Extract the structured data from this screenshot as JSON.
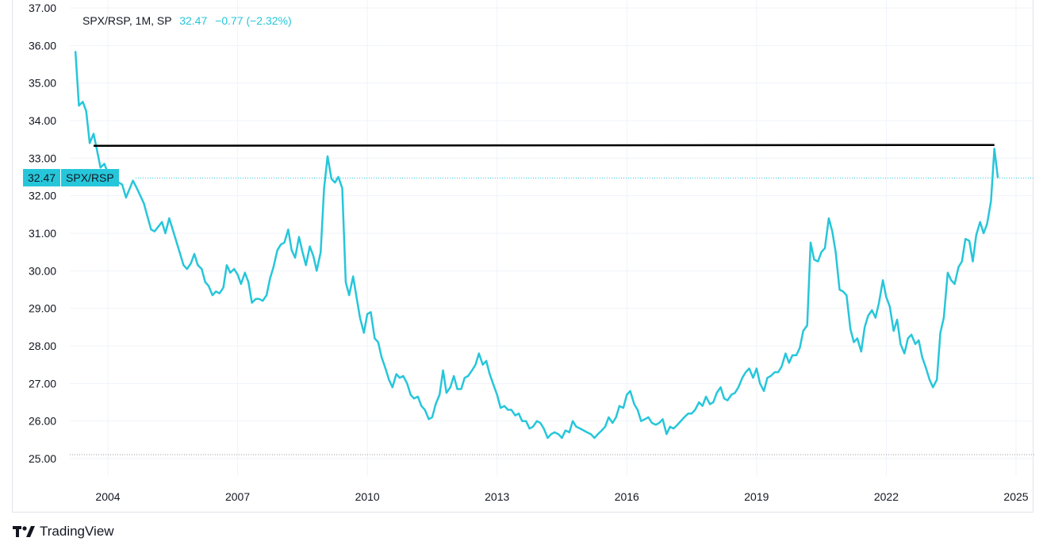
{
  "legend": {
    "symbol": "SPX/RSP, 1M, SP",
    "price": "32.47",
    "change": "−0.77 (−2.32%)"
  },
  "last_badge": {
    "price": "32.47",
    "name": "SPX/RSP"
  },
  "brand": "TradingView",
  "colors": {
    "line": "#26c6da",
    "resistance": "#000000",
    "grid": "#f0f3fa"
  },
  "chart_data": {
    "type": "line",
    "title": "SPX/RSP, 1M, SP",
    "ylim": [
      25.0,
      37.0
    ],
    "y_ticks": [
      "25.00",
      "26.00",
      "27.00",
      "28.00",
      "29.00",
      "30.00",
      "31.00",
      "32.00",
      "33.00",
      "34.00",
      "35.00",
      "36.00",
      "37.00"
    ],
    "x_ticks": [
      "2004",
      "2007",
      "2010",
      "2013",
      "2016",
      "2019",
      "2022",
      "2025"
    ],
    "last_value": 32.47,
    "series": [
      {
        "values": [
          [
            2003.25,
            35.85
          ],
          [
            2003.33,
            34.4
          ],
          [
            2003.42,
            34.5
          ],
          [
            2003.5,
            34.25
          ],
          [
            2003.58,
            33.4
          ],
          [
            2003.67,
            33.65
          ],
          [
            2003.75,
            33.2
          ],
          [
            2003.83,
            32.75
          ],
          [
            2003.92,
            32.85
          ],
          [
            2004.0,
            32.6
          ],
          [
            2004.17,
            32.4
          ],
          [
            2004.33,
            32.3
          ],
          [
            2004.42,
            31.95
          ],
          [
            2004.58,
            32.4
          ],
          [
            2004.67,
            32.2
          ],
          [
            2004.83,
            31.8
          ],
          [
            2005.0,
            31.1
          ],
          [
            2005.08,
            31.05
          ],
          [
            2005.25,
            31.3
          ],
          [
            2005.33,
            31.0
          ],
          [
            2005.42,
            31.4
          ],
          [
            2005.58,
            30.8
          ],
          [
            2005.75,
            30.15
          ],
          [
            2005.83,
            30.05
          ],
          [
            2005.92,
            30.2
          ],
          [
            2006.0,
            30.45
          ],
          [
            2006.08,
            30.15
          ],
          [
            2006.17,
            30.05
          ],
          [
            2006.25,
            29.7
          ],
          [
            2006.33,
            29.6
          ],
          [
            2006.42,
            29.35
          ],
          [
            2006.5,
            29.45
          ],
          [
            2006.58,
            29.4
          ],
          [
            2006.67,
            29.55
          ],
          [
            2006.75,
            30.15
          ],
          [
            2006.83,
            29.95
          ],
          [
            2006.92,
            30.05
          ],
          [
            2007.0,
            29.9
          ],
          [
            2007.08,
            29.65
          ],
          [
            2007.17,
            29.95
          ],
          [
            2007.25,
            29.7
          ],
          [
            2007.33,
            29.15
          ],
          [
            2007.42,
            29.25
          ],
          [
            2007.5,
            29.25
          ],
          [
            2007.58,
            29.2
          ],
          [
            2007.67,
            29.35
          ],
          [
            2007.75,
            29.8
          ],
          [
            2007.83,
            30.1
          ],
          [
            2007.92,
            30.55
          ],
          [
            2008.0,
            30.7
          ],
          [
            2008.08,
            30.75
          ],
          [
            2008.17,
            31.1
          ],
          [
            2008.25,
            30.55
          ],
          [
            2008.33,
            30.35
          ],
          [
            2008.42,
            30.9
          ],
          [
            2008.5,
            30.5
          ],
          [
            2008.58,
            30.15
          ],
          [
            2008.67,
            30.65
          ],
          [
            2008.75,
            30.4
          ],
          [
            2008.83,
            30.0
          ],
          [
            2008.92,
            30.5
          ],
          [
            2009.0,
            32.2
          ],
          [
            2009.08,
            33.05
          ],
          [
            2009.17,
            32.45
          ],
          [
            2009.25,
            32.35
          ],
          [
            2009.33,
            32.5
          ],
          [
            2009.42,
            32.2
          ],
          [
            2009.5,
            29.7
          ],
          [
            2009.58,
            29.35
          ],
          [
            2009.67,
            29.85
          ],
          [
            2009.75,
            29.3
          ],
          [
            2009.83,
            28.75
          ],
          [
            2009.92,
            28.35
          ],
          [
            2010.0,
            28.85
          ],
          [
            2010.08,
            28.9
          ],
          [
            2010.17,
            28.2
          ],
          [
            2010.25,
            28.1
          ],
          [
            2010.33,
            27.7
          ],
          [
            2010.42,
            27.4
          ],
          [
            2010.5,
            27.1
          ],
          [
            2010.58,
            26.9
          ],
          [
            2010.67,
            27.25
          ],
          [
            2010.75,
            27.15
          ],
          [
            2010.83,
            27.2
          ],
          [
            2010.92,
            27.0
          ],
          [
            2011.0,
            26.7
          ],
          [
            2011.08,
            26.6
          ],
          [
            2011.17,
            26.65
          ],
          [
            2011.25,
            26.4
          ],
          [
            2011.33,
            26.3
          ],
          [
            2011.42,
            26.05
          ],
          [
            2011.5,
            26.1
          ],
          [
            2011.58,
            26.45
          ],
          [
            2011.67,
            26.7
          ],
          [
            2011.75,
            27.35
          ],
          [
            2011.83,
            26.75
          ],
          [
            2011.92,
            26.9
          ],
          [
            2012.0,
            27.2
          ],
          [
            2012.08,
            26.85
          ],
          [
            2012.17,
            26.85
          ],
          [
            2012.25,
            27.15
          ],
          [
            2012.33,
            27.2
          ],
          [
            2012.42,
            27.35
          ],
          [
            2012.5,
            27.5
          ],
          [
            2012.58,
            27.8
          ],
          [
            2012.67,
            27.5
          ],
          [
            2012.75,
            27.6
          ],
          [
            2012.83,
            27.25
          ],
          [
            2012.92,
            26.95
          ],
          [
            2013.0,
            26.7
          ],
          [
            2013.08,
            26.35
          ],
          [
            2013.17,
            26.4
          ],
          [
            2013.25,
            26.3
          ],
          [
            2013.33,
            26.3
          ],
          [
            2013.42,
            26.15
          ],
          [
            2013.5,
            26.2
          ],
          [
            2013.58,
            26.0
          ],
          [
            2013.67,
            26.0
          ],
          [
            2013.75,
            25.8
          ],
          [
            2013.83,
            25.85
          ],
          [
            2013.92,
            26.0
          ],
          [
            2014.0,
            25.95
          ],
          [
            2014.08,
            25.8
          ],
          [
            2014.17,
            25.55
          ],
          [
            2014.25,
            25.65
          ],
          [
            2014.33,
            25.7
          ],
          [
            2014.42,
            25.65
          ],
          [
            2014.5,
            25.55
          ],
          [
            2014.58,
            25.75
          ],
          [
            2014.67,
            25.7
          ],
          [
            2014.75,
            26.0
          ],
          [
            2014.83,
            25.85
          ],
          [
            2014.92,
            25.8
          ],
          [
            2015.0,
            25.75
          ],
          [
            2015.08,
            25.7
          ],
          [
            2015.17,
            25.65
          ],
          [
            2015.25,
            25.55
          ],
          [
            2015.33,
            25.65
          ],
          [
            2015.42,
            25.75
          ],
          [
            2015.5,
            25.85
          ],
          [
            2015.58,
            26.1
          ],
          [
            2015.67,
            25.95
          ],
          [
            2015.75,
            26.1
          ],
          [
            2015.83,
            26.4
          ],
          [
            2015.92,
            26.35
          ],
          [
            2016.0,
            26.7
          ],
          [
            2016.08,
            26.8
          ],
          [
            2016.17,
            26.45
          ],
          [
            2016.25,
            26.3
          ],
          [
            2016.33,
            26.0
          ],
          [
            2016.42,
            26.05
          ],
          [
            2016.5,
            26.1
          ],
          [
            2016.58,
            25.95
          ],
          [
            2016.67,
            25.9
          ],
          [
            2016.75,
            25.95
          ],
          [
            2016.83,
            26.05
          ],
          [
            2016.92,
            25.65
          ],
          [
            2017.0,
            25.85
          ],
          [
            2017.08,
            25.8
          ],
          [
            2017.17,
            25.9
          ],
          [
            2017.25,
            26.0
          ],
          [
            2017.33,
            26.1
          ],
          [
            2017.42,
            26.2
          ],
          [
            2017.5,
            26.2
          ],
          [
            2017.58,
            26.3
          ],
          [
            2017.67,
            26.5
          ],
          [
            2017.75,
            26.4
          ],
          [
            2017.83,
            26.65
          ],
          [
            2017.92,
            26.45
          ],
          [
            2018.0,
            26.5
          ],
          [
            2018.08,
            26.75
          ],
          [
            2018.17,
            26.9
          ],
          [
            2018.25,
            26.6
          ],
          [
            2018.33,
            26.55
          ],
          [
            2018.42,
            26.7
          ],
          [
            2018.5,
            26.75
          ],
          [
            2018.58,
            26.9
          ],
          [
            2018.67,
            27.15
          ],
          [
            2018.75,
            27.3
          ],
          [
            2018.83,
            27.4
          ],
          [
            2018.92,
            27.15
          ],
          [
            2019.0,
            27.4
          ],
          [
            2019.08,
            27.0
          ],
          [
            2019.17,
            26.8
          ],
          [
            2019.25,
            27.15
          ],
          [
            2019.33,
            27.2
          ],
          [
            2019.42,
            27.3
          ],
          [
            2019.5,
            27.3
          ],
          [
            2019.58,
            27.45
          ],
          [
            2019.67,
            27.8
          ],
          [
            2019.75,
            27.55
          ],
          [
            2019.83,
            27.75
          ],
          [
            2019.92,
            27.75
          ],
          [
            2020.0,
            27.95
          ],
          [
            2020.08,
            28.4
          ],
          [
            2020.17,
            28.55
          ],
          [
            2020.25,
            30.75
          ],
          [
            2020.33,
            30.3
          ],
          [
            2020.42,
            30.25
          ],
          [
            2020.5,
            30.5
          ],
          [
            2020.58,
            30.6
          ],
          [
            2020.67,
            31.4
          ],
          [
            2020.75,
            31.05
          ],
          [
            2020.83,
            30.5
          ],
          [
            2020.92,
            29.5
          ],
          [
            2021.0,
            29.45
          ],
          [
            2021.08,
            29.35
          ],
          [
            2021.17,
            28.45
          ],
          [
            2021.25,
            28.1
          ],
          [
            2021.33,
            28.2
          ],
          [
            2021.42,
            27.85
          ],
          [
            2021.5,
            28.5
          ],
          [
            2021.58,
            28.8
          ],
          [
            2021.67,
            28.95
          ],
          [
            2021.75,
            28.75
          ],
          [
            2021.83,
            29.15
          ],
          [
            2021.92,
            29.75
          ],
          [
            2022.0,
            29.3
          ],
          [
            2022.08,
            29.05
          ],
          [
            2022.17,
            28.4
          ],
          [
            2022.25,
            28.7
          ],
          [
            2022.33,
            28.05
          ],
          [
            2022.42,
            27.8
          ],
          [
            2022.5,
            28.2
          ],
          [
            2022.58,
            28.3
          ],
          [
            2022.67,
            28.05
          ],
          [
            2022.75,
            28.15
          ],
          [
            2022.83,
            27.7
          ],
          [
            2022.92,
            27.4
          ],
          [
            2023.0,
            27.1
          ],
          [
            2023.08,
            26.9
          ],
          [
            2023.17,
            27.1
          ],
          [
            2023.25,
            28.35
          ],
          [
            2023.33,
            28.75
          ],
          [
            2023.42,
            29.95
          ],
          [
            2023.5,
            29.75
          ],
          [
            2023.58,
            29.65
          ],
          [
            2023.67,
            30.1
          ],
          [
            2023.75,
            30.25
          ],
          [
            2023.83,
            30.85
          ],
          [
            2023.92,
            30.8
          ],
          [
            2024.0,
            30.25
          ],
          [
            2024.08,
            30.95
          ],
          [
            2024.17,
            31.3
          ],
          [
            2024.25,
            31.0
          ],
          [
            2024.33,
            31.25
          ],
          [
            2024.42,
            31.85
          ],
          [
            2024.5,
            33.25
          ],
          [
            2024.58,
            32.47
          ]
        ]
      }
    ],
    "hline": {
      "y": 33.33,
      "x_from": 2003.67,
      "x_to": 2024.5
    },
    "last_price_line": 32.47,
    "grid": true
  }
}
